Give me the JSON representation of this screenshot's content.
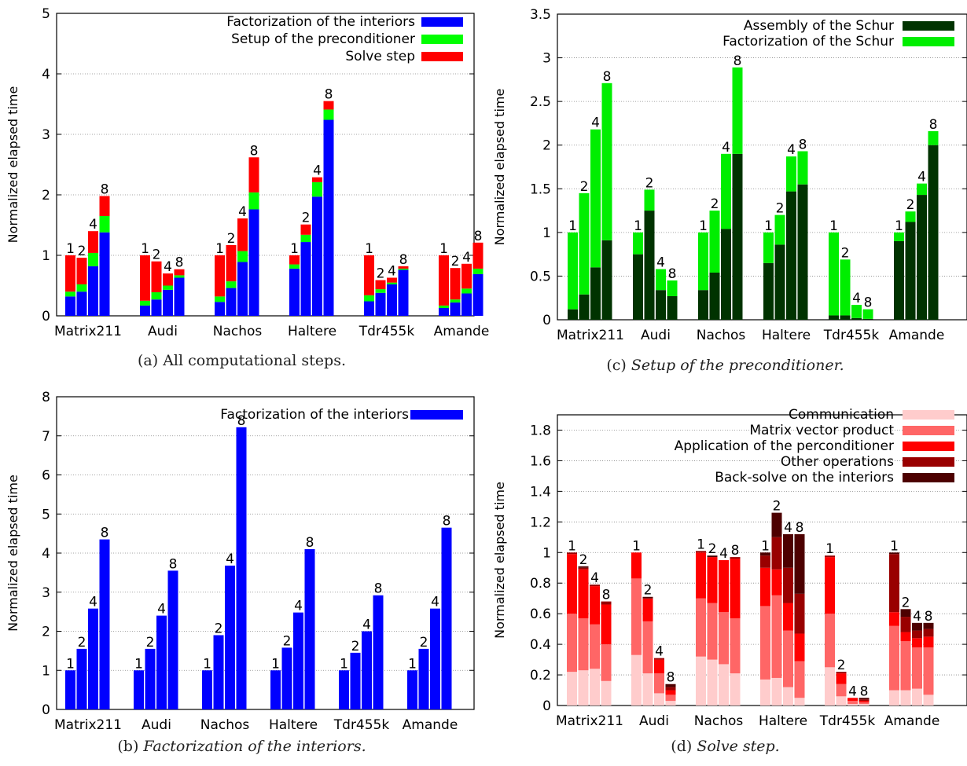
{
  "chart_data": [
    {
      "id": "a",
      "type": "bar",
      "stacked": true,
      "caption_label": "(a)",
      "caption_text": "All computational steps.",
      "ylabel": "Normalized elapsed time",
      "ylim": [
        0,
        5
      ],
      "yticks": [
        0,
        1,
        2,
        3,
        4,
        5
      ],
      "grid": true,
      "legend_position": "top-right",
      "categories": [
        "Matrix211",
        "Audi",
        "Nachos",
        "Haltere",
        "Tdr455k",
        "Amande"
      ],
      "bar_labels": [
        "1",
        "2",
        "4",
        "8"
      ],
      "series": [
        {
          "name": "Factorization of the interiors",
          "color": "#0000ff",
          "values": [
            [
              0.32,
              0.4,
              0.82,
              1.38
            ],
            [
              0.17,
              0.27,
              0.43,
              0.63
            ],
            [
              0.23,
              0.46,
              0.89,
              1.76
            ],
            [
              0.78,
              1.22,
              1.97,
              3.24
            ],
            [
              0.24,
              0.38,
              0.52,
              0.76
            ],
            [
              0.13,
              0.22,
              0.37,
              0.69
            ]
          ]
        },
        {
          "name": "Setup of the preconditioner",
          "color": "#00ff00",
          "values": [
            [
              0.08,
              0.12,
              0.22,
              0.27
            ],
            [
              0.08,
              0.12,
              0.07,
              0.04
            ],
            [
              0.09,
              0.11,
              0.18,
              0.28
            ],
            [
              0.07,
              0.12,
              0.24,
              0.17
            ],
            [
              0.1,
              0.06,
              0.03,
              0.02
            ],
            [
              0.04,
              0.05,
              0.08,
              0.09
            ]
          ]
        },
        {
          "name": "Solve step",
          "color": "#ff0000",
          "values": [
            [
              0.6,
              0.44,
              0.36,
              0.33
            ],
            [
              0.75,
              0.51,
              0.2,
              0.1
            ],
            [
              0.68,
              0.6,
              0.54,
              0.58
            ],
            [
              0.15,
              0.17,
              0.08,
              0.14
            ],
            [
              0.66,
              0.15,
              0.08,
              0.04
            ],
            [
              0.83,
              0.52,
              0.41,
              0.43
            ]
          ]
        }
      ]
    },
    {
      "id": "b",
      "type": "bar",
      "stacked": false,
      "caption_label": "(b)",
      "caption_text": "Factorization of the interiors.",
      "ylabel": "Normalized elapsed time",
      "ylim": [
        0,
        8
      ],
      "yticks": [
        0,
        1,
        2,
        3,
        4,
        5,
        6,
        7,
        8
      ],
      "grid": true,
      "legend_position": "top-right",
      "categories": [
        "Matrix211",
        "Audi",
        "Nachos",
        "Haltere",
        "Tdr455k",
        "Amande"
      ],
      "bar_labels": [
        "1",
        "2",
        "4",
        "8"
      ],
      "series": [
        {
          "name": "Factorization of the interiors",
          "color": "#0000ff",
          "values": [
            [
              1.0,
              1.55,
              2.58,
              4.35
            ],
            [
              1.0,
              1.55,
              2.4,
              3.55
            ],
            [
              1.0,
              1.9,
              3.68,
              7.22
            ],
            [
              1.0,
              1.58,
              2.48,
              4.1
            ],
            [
              1.0,
              1.45,
              2.0,
              2.92
            ],
            [
              1.0,
              1.55,
              2.58,
              4.65
            ]
          ]
        }
      ]
    },
    {
      "id": "c",
      "type": "bar",
      "stacked": true,
      "caption_label": "(c)",
      "caption_text": "Setup of the preconditioner.",
      "ylabel": "Normalized elapsed time",
      "ylim": [
        0,
        3.5
      ],
      "yticks": [
        "0",
        "0.5",
        "1",
        "1.5",
        "2",
        "2.5",
        "3",
        "3.5"
      ],
      "grid": true,
      "legend_position": "top-right",
      "categories": [
        "Matrix211",
        "Audi",
        "Nachos",
        "Haltere",
        "Tdr455k",
        "Amande"
      ],
      "bar_labels": [
        "1",
        "2",
        "4",
        "8"
      ],
      "series": [
        {
          "name": "Assembly of the Schur",
          "color": "#003300",
          "values": [
            [
              0.12,
              0.29,
              0.6,
              0.91
            ],
            [
              0.75,
              1.25,
              0.34,
              0.27
            ],
            [
              0.34,
              0.54,
              1.04,
              1.9
            ],
            [
              0.65,
              0.86,
              1.47,
              1.55
            ],
            [
              0.05,
              0.05,
              0.02,
              0.01
            ],
            [
              0.9,
              1.12,
              1.43,
              2.0
            ]
          ]
        },
        {
          "name": "Factorization of the Schur",
          "color": "#00ee00",
          "values": [
            [
              0.88,
              1.16,
              1.58,
              1.8
            ],
            [
              0.25,
              0.24,
              0.24,
              0.18
            ],
            [
              0.66,
              0.71,
              0.86,
              0.99
            ],
            [
              0.35,
              0.34,
              0.4,
              0.38
            ],
            [
              0.95,
              0.64,
              0.15,
              0.11
            ],
            [
              0.1,
              0.12,
              0.13,
              0.16
            ]
          ]
        }
      ]
    },
    {
      "id": "d",
      "type": "bar",
      "stacked": true,
      "caption_label": "(d)",
      "caption_text": "Solve step.",
      "ylabel": "Normalized elapsed time",
      "ylim": [
        0,
        1.9
      ],
      "yticks": [
        "0",
        "0.2",
        "0.4",
        "0.6",
        "0.8",
        "1",
        "1.2",
        "1.4",
        "1.6",
        "1.8"
      ],
      "grid": true,
      "legend_position": "top-right",
      "categories": [
        "Matrix211",
        "Audi",
        "Nachos",
        "Haltere",
        "Tdr455k",
        "Amande"
      ],
      "bar_labels": [
        "1",
        "2",
        "4",
        "8"
      ],
      "series": [
        {
          "name": "Communication",
          "color": "#ffcccc",
          "values": [
            [
              0.22,
              0.23,
              0.24,
              0.16
            ],
            [
              0.33,
              0.21,
              0.08,
              0.03
            ],
            [
              0.32,
              0.3,
              0.27,
              0.21
            ],
            [
              0.17,
              0.18,
              0.12,
              0.05
            ],
            [
              0.25,
              0.06,
              0.01,
              0.01
            ],
            [
              0.1,
              0.1,
              0.11,
              0.07
            ]
          ]
        },
        {
          "name": "Matrix vector product",
          "color": "#ff6666",
          "values": [
            [
              0.38,
              0.34,
              0.29,
              0.24
            ],
            [
              0.5,
              0.34,
              0.13,
              0.04
            ],
            [
              0.38,
              0.37,
              0.34,
              0.36
            ],
            [
              0.48,
              0.54,
              0.37,
              0.24
            ],
            [
              0.35,
              0.08,
              0.02,
              0.01
            ],
            [
              0.42,
              0.32,
              0.27,
              0.31
            ]
          ]
        },
        {
          "name": "Application of the perconditioner",
          "color": "#ff0000",
          "values": [
            [
              0.39,
              0.32,
              0.25,
              0.26
            ],
            [
              0.17,
              0.15,
              0.09,
              0.03
            ],
            [
              0.3,
              0.3,
              0.34,
              0.39
            ],
            [
              0.25,
              0.17,
              0.18,
              0.18
            ],
            [
              0.37,
              0.07,
              0.02,
              0.01
            ],
            [
              0.09,
              0.06,
              0.06,
              0.07
            ]
          ]
        },
        {
          "name": "Other operations",
          "color": "#990000",
          "values": [
            [
              0.01,
              0.01,
              0.01,
              0.02
            ],
            [
              0.0,
              0.0,
              0.01,
              0.02
            ],
            [
              0.01,
              0.0,
              0.0,
              0.01
            ],
            [
              0.08,
              0.21,
              0.23,
              0.26
            ],
            [
              0.01,
              0.01,
              0.0,
              0.01
            ],
            [
              0.38,
              0.1,
              0.05,
              0.05
            ]
          ]
        },
        {
          "name": "Back-solve on the interiors",
          "color": "#4d0000",
          "values": [
            [
              0.0,
              0.01,
              0.0,
              0.0
            ],
            [
              0.0,
              0.01,
              0.0,
              0.02
            ],
            [
              0.0,
              0.01,
              0.0,
              0.0
            ],
            [
              0.02,
              0.16,
              0.22,
              0.39
            ],
            [
              0.0,
              0.0,
              0.0,
              0.01
            ],
            [
              0.01,
              0.05,
              0.05,
              0.04
            ]
          ]
        }
      ]
    }
  ]
}
